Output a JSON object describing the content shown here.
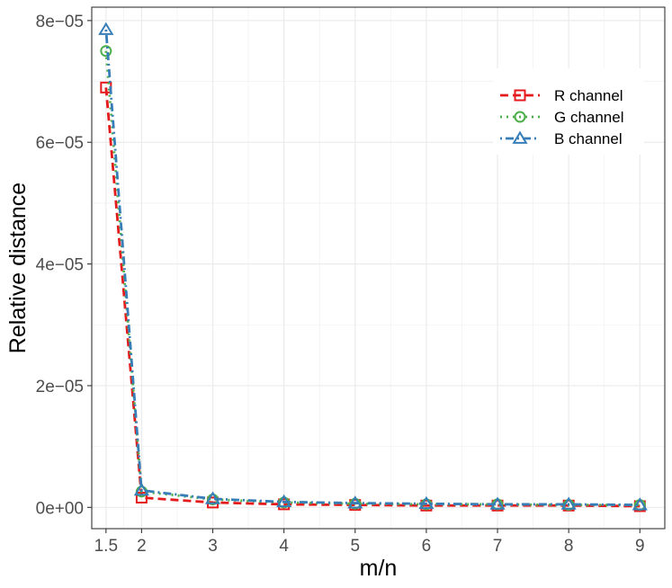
{
  "chart_data": {
    "type": "line",
    "xlabel": "m/n",
    "ylabel": "Relative distance",
    "x": [
      1.5,
      2,
      3,
      4,
      5,
      6,
      7,
      8,
      9
    ],
    "x_tick_values": [
      1.5,
      2,
      3,
      4,
      5,
      6,
      7,
      8,
      9
    ],
    "x_tick_labels": [
      "1.5",
      "2",
      "3",
      "4",
      "5",
      "6",
      "7",
      "8",
      "9"
    ],
    "y_tick_values": [
      0,
      2e-05,
      4e-05,
      6e-05,
      8e-05
    ],
    "y_tick_labels": [
      "0e+00",
      "2e−05",
      "4e−05",
      "6e−05",
      "8e−05"
    ],
    "xlim": [
      1.3,
      9.35
    ],
    "ylim": [
      -3.5e-06,
      8.22e-05
    ],
    "grid": true,
    "legend_position": "top-right",
    "series": [
      {
        "name": "R channel",
        "color": "#e41a1c",
        "line_style": "dashed",
        "marker": "square",
        "values": [
          6.9e-05,
          1.6e-06,
          8e-07,
          5e-07,
          4e-07,
          3e-07,
          3e-07,
          3e-07,
          2e-07
        ]
      },
      {
        "name": "G channel",
        "color": "#4daf4a",
        "line_style": "dotted",
        "marker": "circle",
        "values": [
          7.5e-05,
          2.6e-06,
          1.3e-06,
          8e-07,
          6e-07,
          5e-07,
          5e-07,
          4e-07,
          4e-07
        ]
      },
      {
        "name": "B channel",
        "color": "#377eb8",
        "line_style": "dotdash",
        "marker": "triangle",
        "values": [
          7.85e-05,
          2.8e-06,
          1.4e-06,
          9e-07,
          7e-07,
          6e-07,
          5e-07,
          5e-07,
          4e-07
        ]
      }
    ]
  }
}
